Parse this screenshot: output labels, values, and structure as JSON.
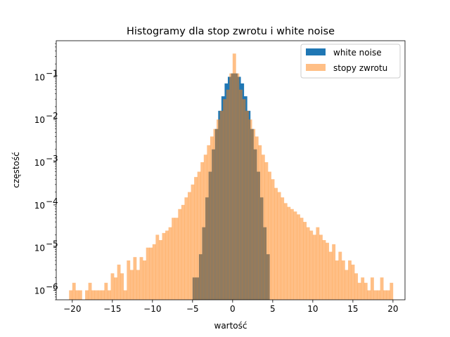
{
  "chart_data": {
    "type": "bar",
    "title": "Histogramy dla stop zwrotu i white noise",
    "xlabel": "wartość",
    "ylabel": "częstość",
    "xlim": [
      -22,
      21.5
    ],
    "ylim": [
      6e-07,
      0.7
    ],
    "yscale": "log",
    "x_ticks": [
      -20,
      -15,
      -10,
      -5,
      0,
      5,
      10,
      15,
      20
    ],
    "x_tick_labels": [
      "−20",
      "−15",
      "−10",
      "−5",
      "0",
      "5",
      "10",
      "15",
      "20"
    ],
    "y_ticks": [
      -6,
      -5,
      -4,
      -3,
      -2,
      -1
    ],
    "y_tick_labels": [
      "10",
      "10",
      "10",
      "10",
      "10",
      "10"
    ],
    "y_tick_exponents": [
      "−6",
      "−5",
      "−4",
      "−3",
      "−2",
      "−1"
    ],
    "grid": false,
    "legend_position": "top-right",
    "bin_width": 0.4,
    "series": [
      {
        "name": "white noise",
        "color": "#1f77b4",
        "alpha": 1.0,
        "bins": [
          [
            -5.0,
            2e-06
          ],
          [
            -4.6,
            2e-06
          ],
          [
            -4.2,
            7e-06
          ],
          [
            -3.8,
            3e-05
          ],
          [
            -3.4,
            0.00015
          ],
          [
            -3.0,
            0.0006
          ],
          [
            -2.6,
            0.002
          ],
          [
            -2.2,
            0.006
          ],
          [
            -1.8,
            0.016
          ],
          [
            -1.4,
            0.035
          ],
          [
            -1.0,
            0.07
          ],
          [
            -0.6,
            0.1
          ],
          [
            -0.2,
            0.12
          ],
          [
            0.2,
            0.12
          ],
          [
            0.6,
            0.1
          ],
          [
            1.0,
            0.07
          ],
          [
            1.4,
            0.035
          ],
          [
            1.8,
            0.016
          ],
          [
            2.2,
            0.006
          ],
          [
            2.6,
            0.002
          ],
          [
            3.0,
            0.0006
          ],
          [
            3.4,
            0.00015
          ],
          [
            3.8,
            3e-05
          ],
          [
            4.2,
            7e-06
          ]
        ]
      },
      {
        "name": "stopy zwrotu",
        "color": "#ff7f0e",
        "alpha": 0.5,
        "bins": [
          [
            -20.4,
            1e-06
          ],
          [
            -20.0,
            1.5e-06
          ],
          [
            -19.6,
            1e-06
          ],
          [
            -19.2,
            1e-06
          ],
          [
            -18.4,
            1e-06
          ],
          [
            -18.0,
            1.5e-06
          ],
          [
            -17.6,
            1e-06
          ],
          [
            -17.2,
            1e-06
          ],
          [
            -16.8,
            1e-06
          ],
          [
            -16.4,
            1e-06
          ],
          [
            -16.0,
            1.5e-06
          ],
          [
            -15.6,
            1e-06
          ],
          [
            -15.2,
            2.5e-06
          ],
          [
            -14.8,
            2e-06
          ],
          [
            -14.4,
            4e-06
          ],
          [
            -14.0,
            2.5e-06
          ],
          [
            -13.6,
            1e-06
          ],
          [
            -13.2,
            5e-06
          ],
          [
            -12.8,
            3e-06
          ],
          [
            -12.4,
            6e-06
          ],
          [
            -12.0,
            3e-06
          ],
          [
            -11.6,
            6e-06
          ],
          [
            -11.2,
            5e-06
          ],
          [
            -10.8,
            1e-05
          ],
          [
            -10.4,
            1e-05
          ],
          [
            -10.0,
            1.2e-05
          ],
          [
            -9.6,
            2e-05
          ],
          [
            -9.2,
            1.5e-05
          ],
          [
            -8.8,
            2.2e-05
          ],
          [
            -8.4,
            2.5e-05
          ],
          [
            -8.0,
            3e-05
          ],
          [
            -7.6,
            5e-05
          ],
          [
            -7.2,
            5e-05
          ],
          [
            -6.8,
            8e-05
          ],
          [
            -6.4,
            0.0001
          ],
          [
            -6.0,
            0.00015
          ],
          [
            -5.6,
            0.0002
          ],
          [
            -5.2,
            0.0003
          ],
          [
            -4.8,
            0.00045
          ],
          [
            -4.4,
            0.0006
          ],
          [
            -4.0,
            0.001
          ],
          [
            -3.6,
            0.0015
          ],
          [
            -3.2,
            0.0025
          ],
          [
            -2.8,
            0.004
          ],
          [
            -2.4,
            0.006
          ],
          [
            -2.0,
            0.01
          ],
          [
            -1.6,
            0.016
          ],
          [
            -1.2,
            0.03
          ],
          [
            -0.8,
            0.05
          ],
          [
            -0.4,
            0.12
          ],
          [
            0.0,
            0.35
          ],
          [
            0.4,
            0.12
          ],
          [
            0.8,
            0.05
          ],
          [
            1.2,
            0.03
          ],
          [
            1.6,
            0.016
          ],
          [
            2.0,
            0.01
          ],
          [
            2.4,
            0.006
          ],
          [
            2.8,
            0.004
          ],
          [
            3.2,
            0.0025
          ],
          [
            3.6,
            0.0015
          ],
          [
            4.0,
            0.001
          ],
          [
            4.4,
            0.0006
          ],
          [
            4.8,
            0.0004
          ],
          [
            5.2,
            0.00025
          ],
          [
            5.6,
            0.0002
          ],
          [
            6.0,
            0.00015
          ],
          [
            6.4,
            0.00011
          ],
          [
            6.8,
            9e-05
          ],
          [
            7.2,
            8e-05
          ],
          [
            7.6,
            7e-05
          ],
          [
            8.0,
            6e-05
          ],
          [
            8.4,
            5e-05
          ],
          [
            8.8,
            4e-05
          ],
          [
            9.2,
            3e-05
          ],
          [
            9.6,
            2.5e-05
          ],
          [
            10.0,
            2e-05
          ],
          [
            10.4,
            3e-05
          ],
          [
            10.8,
            2e-05
          ],
          [
            11.2,
            1.5e-05
          ],
          [
            11.6,
            1.3e-05
          ],
          [
            12.0,
            8e-06
          ],
          [
            12.4,
            1.2e-05
          ],
          [
            12.8,
            5e-06
          ],
          [
            13.2,
            8e-06
          ],
          [
            13.6,
            5e-06
          ],
          [
            14.0,
            3e-06
          ],
          [
            14.4,
            5e-06
          ],
          [
            14.8,
            4e-06
          ],
          [
            15.2,
            2.5e-06
          ],
          [
            15.6,
            1.5e-06
          ],
          [
            16.0,
            2e-06
          ],
          [
            16.4,
            1.5e-06
          ],
          [
            16.8,
            1e-06
          ],
          [
            17.2,
            2e-06
          ],
          [
            17.6,
            1e-06
          ],
          [
            18.0,
            1e-06
          ],
          [
            18.4,
            2e-06
          ],
          [
            18.8,
            1e-06
          ],
          [
            19.2,
            1e-06
          ],
          [
            19.6,
            1.5e-06
          ]
        ]
      }
    ]
  }
}
